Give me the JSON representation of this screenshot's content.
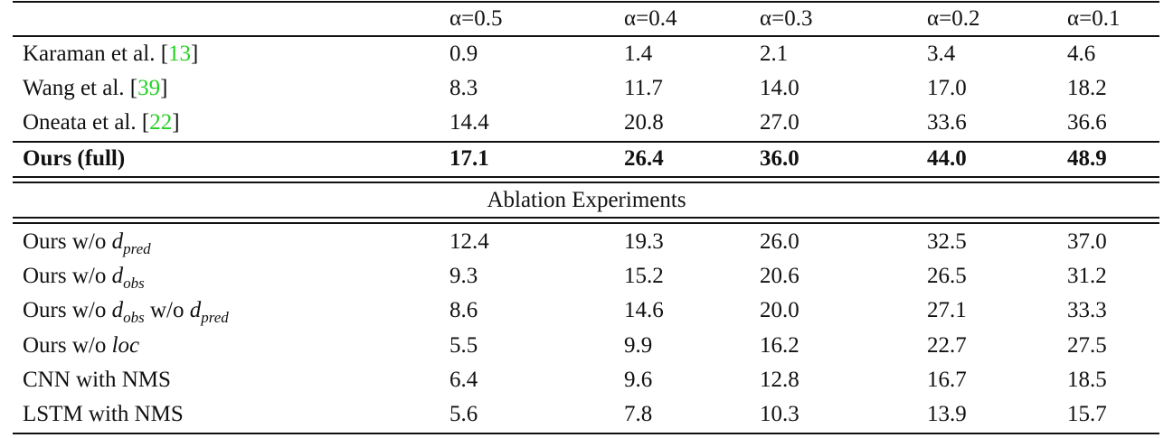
{
  "header": [
    "α=0.5",
    "α=0.4",
    "α=0.3",
    "α=0.2",
    "α=0.1"
  ],
  "main_rows": [
    {
      "method": "Karaman et al. [",
      "ref": "13",
      "close": "]",
      "values": [
        "0.9",
        "1.4",
        "2.1",
        "3.4",
        "4.6"
      ]
    },
    {
      "method": "Wang et al. [",
      "ref": "39",
      "close": "]",
      "values": [
        "8.3",
        "11.7",
        "14.0",
        "17.0",
        "18.2"
      ]
    },
    {
      "method": "Oneata et al. [",
      "ref": "22",
      "close": "]",
      "values": [
        "14.4",
        "20.8",
        "27.0",
        "33.6",
        "36.6"
      ]
    }
  ],
  "ours_full": {
    "method": "Ours (full)",
    "values": [
      "17.1",
      "26.4",
      "36.0",
      "44.0",
      "48.9"
    ]
  },
  "ablation_title": "Ablation Experiments",
  "ablation_rows": [
    {
      "prefix": "Ours w/o ",
      "var": "d",
      "sub": "pred",
      "values": [
        "12.4",
        "19.3",
        "26.0",
        "32.5",
        "37.0"
      ]
    },
    {
      "prefix": "Ours w/o ",
      "var": "d",
      "sub": "obs",
      "values": [
        "9.3",
        "15.2",
        "20.6",
        "26.5",
        "31.2"
      ]
    },
    {
      "prefix": "Ours w/o ",
      "var": "d",
      "sub": "obs",
      "mid": " w/o ",
      "var2": "d",
      "sub2": "pred",
      "values": [
        "8.6",
        "14.6",
        "20.0",
        "27.1",
        "33.3"
      ]
    },
    {
      "prefix": "Ours w/o ",
      "var": "loc",
      "values": [
        "5.5",
        "9.9",
        "16.2",
        "22.7",
        "27.5"
      ]
    },
    {
      "method": "CNN with NMS",
      "values": [
        "6.4",
        "9.6",
        "12.8",
        "16.7",
        "18.5"
      ]
    },
    {
      "method": "LSTM with NMS",
      "values": [
        "5.6",
        "7.8",
        "10.3",
        "13.9",
        "15.7"
      ]
    }
  ]
}
